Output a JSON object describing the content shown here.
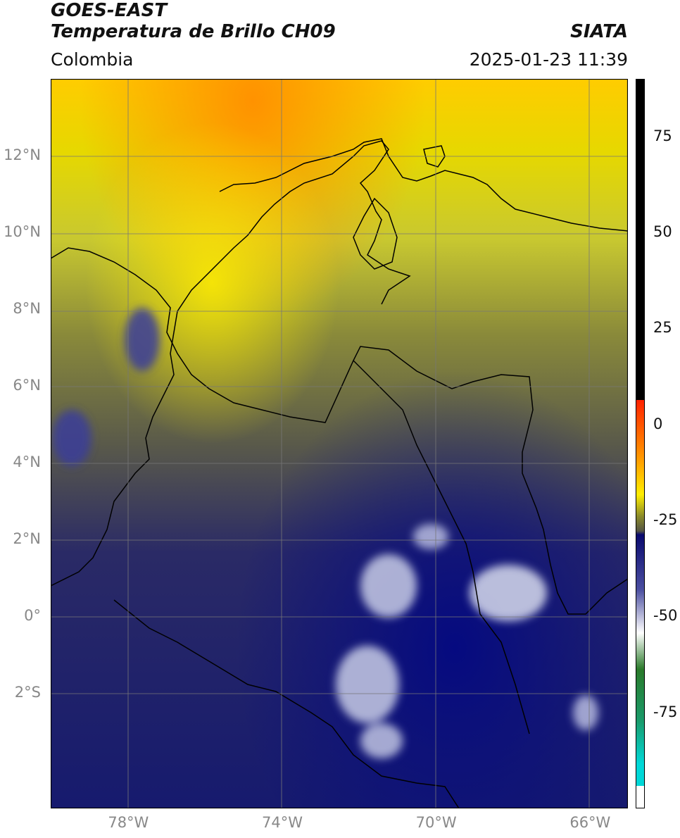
{
  "header": {
    "satellite": "GOES-EAST",
    "product": "Temperatura de Brillo CH09",
    "region": "Colombia",
    "agency": "SIATA",
    "datetime": "2025-01-23 11:39"
  },
  "map": {
    "lon_range": [
      -80,
      -65
    ],
    "lat_range": [
      -5,
      14
    ],
    "lat_ticks": [
      {
        "value": 12,
        "label": "12°N"
      },
      {
        "value": 10,
        "label": "10°N"
      },
      {
        "value": 8,
        "label": "8°N"
      },
      {
        "value": 6,
        "label": "6°N"
      },
      {
        "value": 4,
        "label": "4°N"
      },
      {
        "value": 2,
        "label": "2°N"
      },
      {
        "value": 0,
        "label": "0°"
      },
      {
        "value": -2,
        "label": "2°S"
      }
    ],
    "lon_ticks": [
      {
        "value": -78,
        "label": "78°W"
      },
      {
        "value": -74,
        "label": "74°W"
      },
      {
        "value": -70,
        "label": "70°W"
      },
      {
        "value": -66,
        "label": "66°W"
      }
    ],
    "gridlines": true
  },
  "colorbar": {
    "range": [
      -100,
      90
    ],
    "units": "",
    "ticks": [
      {
        "value": 75,
        "label": "75"
      },
      {
        "value": 50,
        "label": "50"
      },
      {
        "value": 25,
        "label": "25"
      },
      {
        "value": 0,
        "label": "0"
      },
      {
        "value": -25,
        "label": "-25"
      },
      {
        "value": -50,
        "label": "-50"
      },
      {
        "value": -75,
        "label": "-75"
      }
    ],
    "colors": {
      "black": "#000000",
      "red": "#ff2200",
      "orange": "#ff9900",
      "yellow": "#ffee00",
      "olive": "#8a8a2a",
      "gray": "#555544",
      "navy": "#0a0a6e",
      "white": "#ffffff",
      "green": "#2a7a2a",
      "cyan": "#00d8d8"
    }
  }
}
